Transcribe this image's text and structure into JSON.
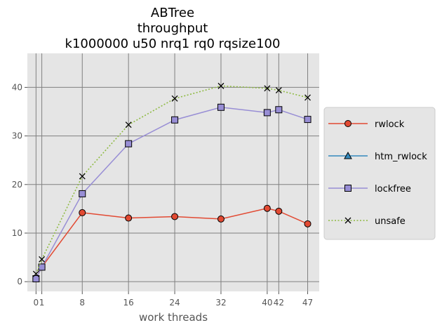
{
  "chart_data": {
    "type": "line",
    "title": [
      "ABTree",
      "throughput",
      "k1000000 u50 nrq1 rq0 rqsize100"
    ],
    "xlabel": "work threads",
    "ylabel": "",
    "x": [
      0,
      1,
      8,
      16,
      24,
      32,
      40,
      42,
      47
    ],
    "xticks": [
      0,
      1,
      8,
      16,
      24,
      32,
      40,
      42,
      47
    ],
    "xtick_labels": [
      "0",
      "1",
      "8",
      "16",
      "24",
      "32",
      "40",
      "42",
      "47"
    ],
    "yticks": [
      0,
      10,
      20,
      30,
      40
    ],
    "xlim": [
      -1.5,
      49
    ],
    "ylim": [
      -2,
      47
    ],
    "grid": true,
    "background": "#e5e5e5",
    "legend_position": "right",
    "series": [
      {
        "name": "rwlock",
        "marker": "circle",
        "color": "#e24a33",
        "marker_fill": "#e24a33",
        "dash": "solid",
        "x": [
          0,
          1,
          8,
          16,
          24,
          32,
          40,
          42,
          47
        ],
        "values": [
          0.6,
          3.0,
          14.2,
          13.1,
          13.4,
          12.9,
          15.1,
          14.5,
          11.9
        ]
      },
      {
        "name": "htm_rwlock",
        "marker": "triangle",
        "color": "#348abd",
        "marker_fill": "#348abd",
        "dash": "solid",
        "x": [],
        "values": []
      },
      {
        "name": "lockfree",
        "marker": "square",
        "color": "#988ed5",
        "marker_fill": "#988ed5",
        "dash": "solid",
        "x": [
          0,
          1,
          8,
          16,
          24,
          32,
          40,
          42,
          47
        ],
        "values": [
          0.6,
          3.0,
          18.1,
          28.4,
          33.3,
          35.9,
          34.8,
          35.4,
          33.4
        ]
      },
      {
        "name": "unsafe",
        "marker": "x",
        "color": "#8eba42",
        "marker_fill": "none",
        "dash": "dotted",
        "x": [
          0,
          1,
          8,
          16,
          24,
          32,
          40,
          42,
          47
        ],
        "values": [
          1.6,
          4.6,
          21.7,
          32.3,
          37.7,
          40.3,
          39.8,
          39.4,
          37.9
        ]
      }
    ]
  }
}
